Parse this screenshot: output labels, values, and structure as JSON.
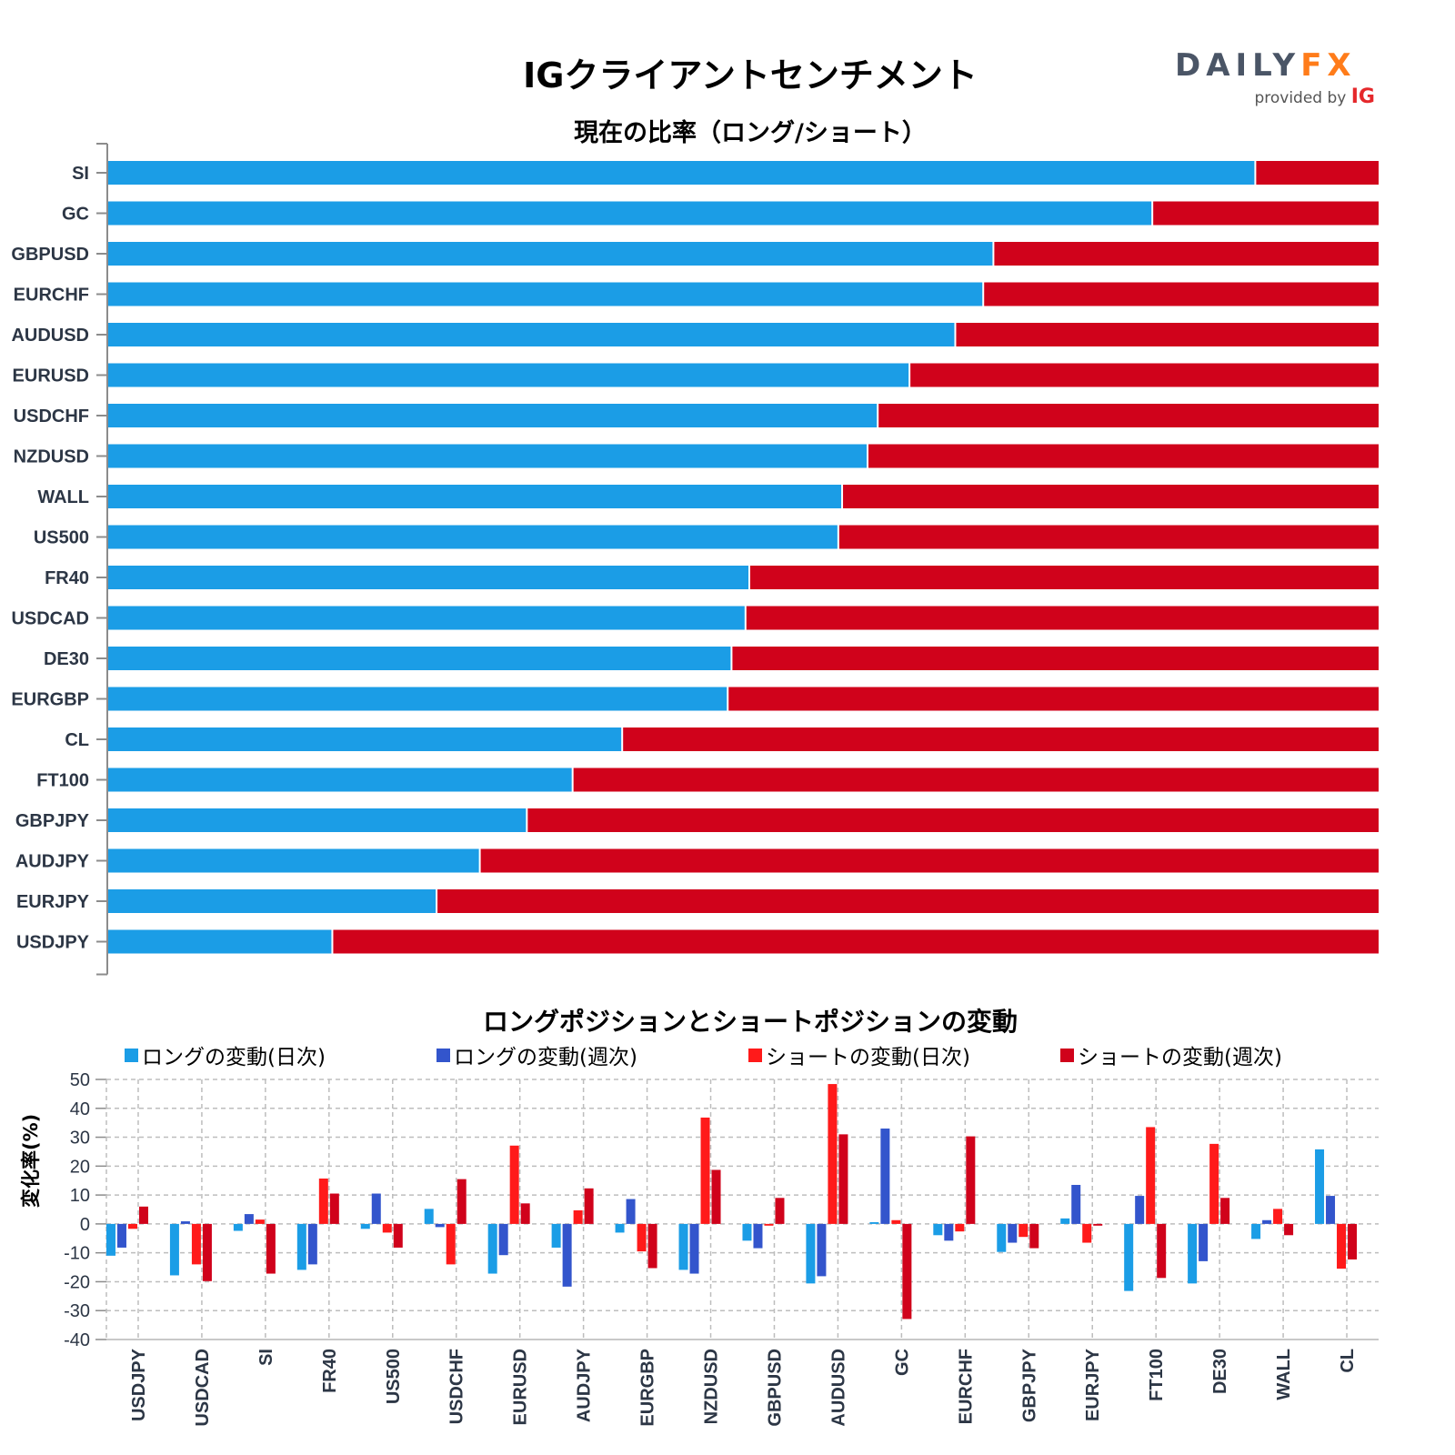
{
  "header": {
    "title": "IGクライアントセンチメント",
    "logo": {
      "daily": "DAILY",
      "fx": "FX",
      "provided_by": "provided by",
      "ig": "IG"
    }
  },
  "colors": {
    "long": "#1b9de6",
    "short": "#d0021b",
    "long_daily": "#1b9de6",
    "long_weekly": "#3355cc",
    "short_daily": "#ff1a1a",
    "short_weekly": "#d0021b"
  },
  "chart_data": [
    {
      "type": "bar",
      "orientation": "horizontal-stacked-100",
      "title": "現在の比率（ロング/ショート）",
      "categories": [
        "SI",
        "GC",
        "GBPUSD",
        "EURCHF",
        "AUDUSD",
        "EURUSD",
        "USDCHF",
        "NZDUSD",
        "WALL",
        "US500",
        "FR40",
        "USDCAD",
        "DE30",
        "EURGBP",
        "CL",
        "FT100",
        "GBPJPY",
        "AUDJPY",
        "EURJPY",
        "USDJPY"
      ],
      "series": [
        {
          "name": "Long",
          "values": [
            90.3,
            82.2,
            69.7,
            68.9,
            66.7,
            63.1,
            60.6,
            59.8,
            57.8,
            57.5,
            50.5,
            50.2,
            49.1,
            48.8,
            40.5,
            36.6,
            33.0,
            29.3,
            25.9,
            17.7
          ]
        },
        {
          "name": "Short",
          "values": [
            9.7,
            17.8,
            30.3,
            31.1,
            33.3,
            36.9,
            39.4,
            40.2,
            42.2,
            42.5,
            49.5,
            49.8,
            50.9,
            51.2,
            59.5,
            63.4,
            67.0,
            70.7,
            74.1,
            82.3
          ]
        }
      ],
      "xlim": [
        0,
        100
      ],
      "xlabel": "",
      "ylabel": ""
    },
    {
      "type": "bar",
      "orientation": "vertical-grouped",
      "title": "ロングポジションとショートポジションの変動",
      "ylabel": "変化率(%)",
      "xlabel": "",
      "ylim": [
        -40,
        50
      ],
      "yticks": [
        50,
        40,
        30,
        20,
        10,
        0,
        -10,
        -20,
        -30,
        -40
      ],
      "grid": true,
      "legend_position": "top",
      "categories": [
        "USDJPY",
        "USDCAD",
        "SI",
        "FR40",
        "US500",
        "USDCHF",
        "EURUSD",
        "AUDJPY",
        "EURGBP",
        "NZDUSD",
        "GBPUSD",
        "AUDUSD",
        "GC",
        "EURCHF",
        "GBPJPY",
        "EURJPY",
        "FT100",
        "DE30",
        "WALL",
        "CL"
      ],
      "series": [
        {
          "name": "ロングの変動(日次)",
          "values": [
            -11.0,
            -17.8,
            -2.4,
            -15.9,
            -1.7,
            5.2,
            -17.2,
            -8.2,
            -3.0,
            -15.9,
            -5.8,
            -20.6,
            0.6,
            -3.9,
            -9.7,
            1.9,
            -23.2,
            -20.6,
            -5.2,
            25.8
          ]
        },
        {
          "name": "ロングの変動(週次)",
          "values": [
            -8.2,
            0.9,
            3.4,
            -14.0,
            10.5,
            -1.1,
            -10.8,
            -21.7,
            8.6,
            -17.2,
            -8.4,
            -18.1,
            33.0,
            -5.8,
            -6.5,
            13.5,
            9.7,
            -12.9,
            1.3,
            9.7
          ]
        },
        {
          "name": "ショートの変動(日次)",
          "values": [
            -1.7,
            -14.0,
            1.5,
            15.7,
            -3.0,
            -14.0,
            27.1,
            4.7,
            -9.5,
            36.8,
            -0.6,
            48.4,
            1.3,
            -2.6,
            -4.5,
            -6.5,
            33.5,
            27.7,
            5.2,
            -15.5
          ]
        },
        {
          "name": "ショートの変動(週次)",
          "values": [
            6.0,
            -19.8,
            -17.2,
            10.5,
            -8.2,
            15.5,
            7.1,
            12.3,
            -15.3,
            18.7,
            9.0,
            31.0,
            -32.9,
            30.3,
            -8.4,
            -0.6,
            -18.7,
            9.0,
            -3.9,
            -12.3
          ]
        }
      ]
    }
  ]
}
